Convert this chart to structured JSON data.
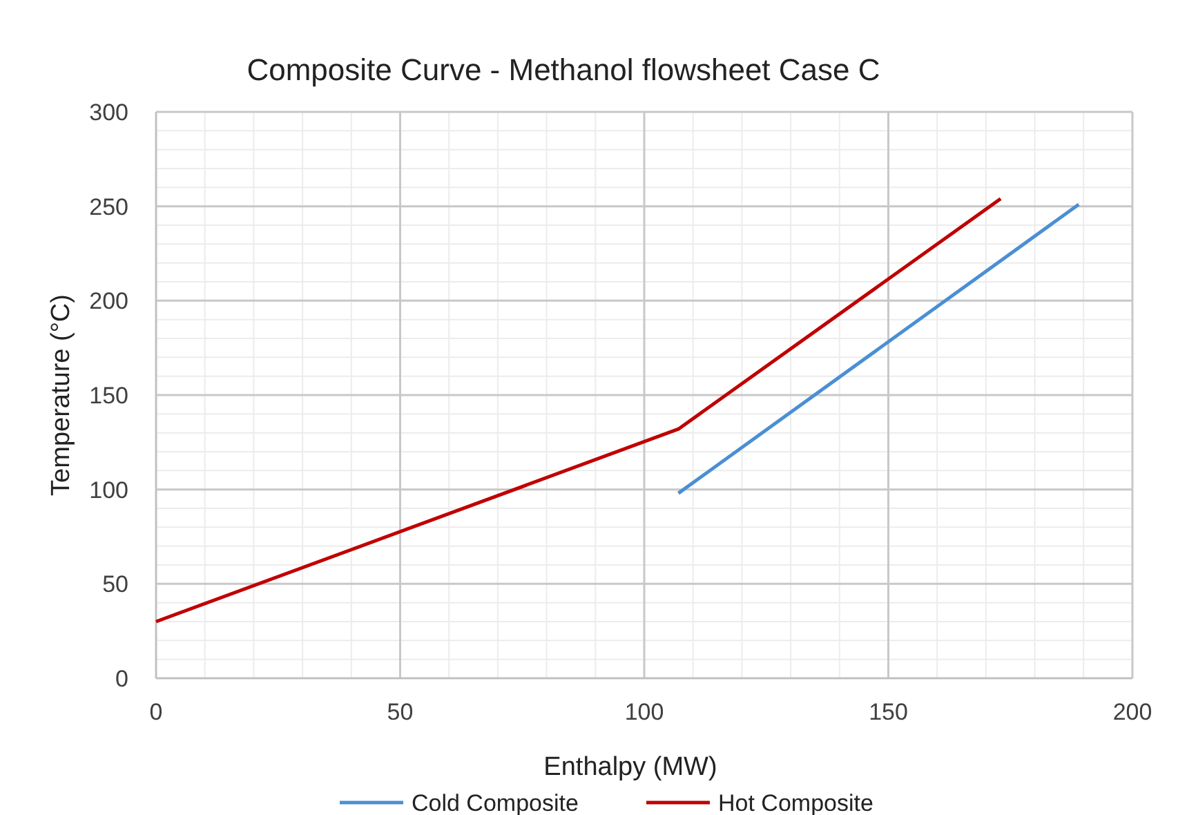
{
  "chart_data": {
    "type": "line",
    "title": "Composite Curve - Methanol flowsheet Case C",
    "xlabel": "Enthalpy (MW)",
    "ylabel": "Temperature (°C)",
    "xlim": [
      0,
      200
    ],
    "xticks": [
      0,
      50,
      100,
      150,
      200
    ],
    "ylim": [
      0,
      300
    ],
    "yticks": [
      0,
      50,
      100,
      150,
      200,
      250,
      300
    ],
    "grid": true,
    "legend": "bottom",
    "marker": "none",
    "line_style": "solid",
    "series": [
      {
        "name": "Cold Composite",
        "color": "#4a8fd4",
        "x": [
          107,
          189
        ],
        "values": [
          98,
          251
        ]
      },
      {
        "name": "Hot Composite",
        "color": "#c00000",
        "x": [
          0,
          107,
          173
        ],
        "values": [
          30,
          132,
          254
        ]
      }
    ]
  }
}
